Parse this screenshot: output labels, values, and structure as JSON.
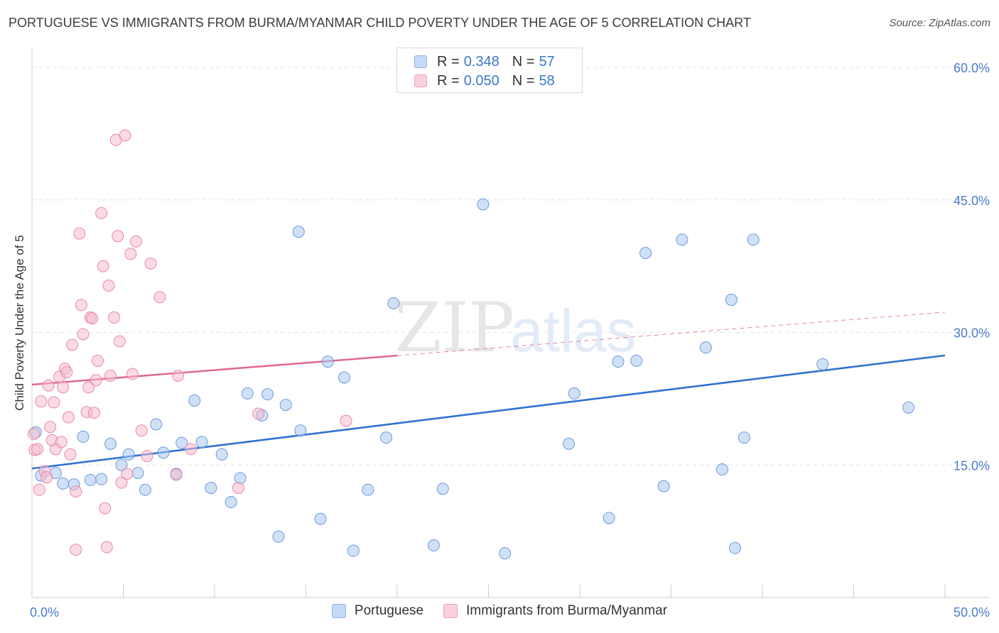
{
  "title": "PORTUGUESE VS IMMIGRANTS FROM BURMA/MYANMAR CHILD POVERTY UNDER THE AGE OF 5 CORRELATION CHART",
  "source": "Source: ZipAtlas.com",
  "watermark": {
    "zip": "ZIP",
    "atlas": "atlas"
  },
  "legend": {
    "rows": [
      {
        "r_label": "R =",
        "r_value": "0.348",
        "n_label": "N =",
        "n_value": "57"
      },
      {
        "r_label": "R =",
        "r_value": "0.050",
        "n_label": "N =",
        "n_value": "58"
      }
    ]
  },
  "colors": {
    "blue_fill": "#aac8f0",
    "blue_stroke": "#6d9ad8",
    "blue_line": "#2f72d0",
    "pink_fill": "#f6bcd0",
    "pink_stroke": "#e889a8",
    "pink_line": "#e0678f",
    "grid": "#e3e3e3",
    "axis": "#cccccc",
    "tick_text": "#4a7cc8"
  },
  "chart_data": {
    "type": "scatter",
    "title": "PORTUGUESE VS IMMIGRANTS FROM BURMA/MYANMAR CHILD POVERTY UNDER THE AGE OF 5 CORRELATION CHART",
    "xlabel": "",
    "ylabel": "Child Poverty Under the Age of 5",
    "xlim": [
      0,
      50
    ],
    "ylim": [
      0,
      60
    ],
    "x_ticks": [
      "0.0%",
      "50.0%"
    ],
    "y_ticks": [
      {
        "value": 15,
        "label": "15.0%"
      },
      {
        "value": 30,
        "label": "30.0%"
      },
      {
        "value": 45,
        "label": "45.0%"
      },
      {
        "value": 60,
        "label": "60.0%"
      }
    ],
    "legend_position": "top-center",
    "series": [
      {
        "name": "Portuguese",
        "r": 0.348,
        "n": 57,
        "trend": {
          "x0": 0,
          "y0": 14.6,
          "x1": 50,
          "y1": 27.4,
          "dashed_from": null
        },
        "points": [
          [
            0.2,
            18.7
          ],
          [
            0.5,
            13.8
          ],
          [
            1.3,
            14.1
          ],
          [
            1.7,
            12.9
          ],
          [
            2.3,
            12.8
          ],
          [
            2.8,
            18.2
          ],
          [
            3.2,
            13.3
          ],
          [
            3.8,
            13.4
          ],
          [
            4.3,
            17.4
          ],
          [
            4.9,
            15.0
          ],
          [
            5.3,
            16.2
          ],
          [
            5.8,
            14.1
          ],
          [
            6.2,
            12.2
          ],
          [
            6.8,
            19.6
          ],
          [
            7.2,
            16.4
          ],
          [
            7.9,
            14.0
          ],
          [
            8.2,
            17.5
          ],
          [
            8.9,
            22.3
          ],
          [
            9.3,
            17.6
          ],
          [
            9.8,
            12.4
          ],
          [
            10.4,
            16.2
          ],
          [
            10.9,
            10.8
          ],
          [
            11.4,
            13.5
          ],
          [
            11.8,
            23.1
          ],
          [
            12.6,
            20.6
          ],
          [
            12.9,
            23.0
          ],
          [
            13.5,
            6.9
          ],
          [
            13.9,
            21.8
          ],
          [
            14.6,
            41.4
          ],
          [
            14.7,
            18.9
          ],
          [
            15.8,
            8.9
          ],
          [
            16.2,
            26.7
          ],
          [
            17.1,
            24.9
          ],
          [
            17.6,
            5.3
          ],
          [
            18.4,
            12.2
          ],
          [
            19.4,
            18.1
          ],
          [
            19.8,
            33.3
          ],
          [
            22.0,
            5.9
          ],
          [
            22.5,
            12.3
          ],
          [
            24.7,
            44.5
          ],
          [
            25.9,
            5.0
          ],
          [
            29.4,
            17.4
          ],
          [
            29.7,
            23.1
          ],
          [
            31.6,
            9.0
          ],
          [
            32.1,
            26.7
          ],
          [
            33.1,
            26.8
          ],
          [
            33.6,
            39.0
          ],
          [
            34.6,
            12.6
          ],
          [
            35.6,
            40.5
          ],
          [
            36.9,
            28.3
          ],
          [
            37.8,
            14.5
          ],
          [
            38.3,
            33.7
          ],
          [
            38.5,
            5.6
          ],
          [
            39.0,
            18.1
          ],
          [
            39.5,
            40.5
          ],
          [
            43.3,
            26.4
          ],
          [
            48.0,
            21.5
          ]
        ]
      },
      {
        "name": "Immigrants from Burma/Myanmar",
        "r": 0.05,
        "n": 58,
        "trend": {
          "x0": 0,
          "y0": 24.1,
          "x1": 50,
          "y1": 32.3,
          "dashed_from": 20
        },
        "points": [
          [
            0.1,
            18.5
          ],
          [
            0.15,
            16.7
          ],
          [
            0.3,
            16.8
          ],
          [
            0.4,
            12.2
          ],
          [
            0.5,
            22.2
          ],
          [
            0.7,
            14.3
          ],
          [
            0.8,
            13.6
          ],
          [
            0.9,
            24.0
          ],
          [
            1.0,
            19.3
          ],
          [
            1.1,
            17.8
          ],
          [
            1.2,
            22.1
          ],
          [
            1.3,
            16.8
          ],
          [
            1.5,
            25.0
          ],
          [
            1.7,
            23.8
          ],
          [
            1.8,
            25.9
          ],
          [
            1.9,
            25.5
          ],
          [
            2.0,
            20.4
          ],
          [
            2.1,
            16.2
          ],
          [
            2.2,
            28.6
          ],
          [
            2.4,
            12.0
          ],
          [
            2.4,
            5.4
          ],
          [
            2.6,
            41.2
          ],
          [
            2.7,
            33.1
          ],
          [
            2.8,
            29.8
          ],
          [
            3.0,
            21.0
          ],
          [
            3.1,
            23.8
          ],
          [
            3.2,
            31.7
          ],
          [
            3.3,
            31.6
          ],
          [
            3.5,
            24.6
          ],
          [
            3.6,
            26.8
          ],
          [
            3.8,
            43.5
          ],
          [
            3.9,
            37.5
          ],
          [
            4.0,
            10.1
          ],
          [
            4.1,
            5.7
          ],
          [
            4.2,
            35.3
          ],
          [
            4.3,
            25.1
          ],
          [
            4.5,
            31.7
          ],
          [
            4.6,
            51.8
          ],
          [
            4.7,
            40.9
          ],
          [
            4.8,
            29.0
          ],
          [
            4.9,
            13.0
          ],
          [
            5.1,
            52.3
          ],
          [
            5.2,
            14.0
          ],
          [
            5.4,
            38.9
          ],
          [
            5.5,
            25.3
          ],
          [
            5.7,
            40.3
          ],
          [
            6.0,
            18.9
          ],
          [
            6.5,
            37.8
          ],
          [
            7.0,
            34.0
          ],
          [
            7.9,
            13.9
          ],
          [
            8.0,
            25.1
          ],
          [
            8.7,
            16.8
          ],
          [
            11.3,
            12.4
          ],
          [
            12.4,
            20.8
          ],
          [
            17.2,
            20.0
          ],
          [
            3.4,
            20.9
          ],
          [
            1.6,
            17.6
          ],
          [
            6.3,
            16.0
          ]
        ]
      }
    ]
  }
}
